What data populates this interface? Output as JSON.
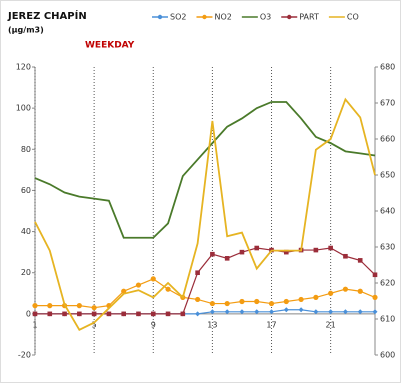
{
  "chart_data": {
    "type": "line",
    "title": "JEREZ CHAPÍN",
    "subtitle": "(µg/m3)",
    "annotation": "WEEKDAY",
    "x": [
      1,
      2,
      3,
      4,
      5,
      6,
      7,
      8,
      9,
      10,
      11,
      12,
      13,
      14,
      15,
      16,
      17,
      18,
      19,
      20,
      21,
      22,
      23,
      24
    ],
    "xlim": [
      1,
      24
    ],
    "xticks": [
      1,
      5,
      9,
      13,
      17,
      21
    ],
    "ylim": [
      -20,
      120
    ],
    "yticks": [
      -20,
      0,
      20,
      40,
      60,
      80,
      100,
      120
    ],
    "y2lim": [
      600,
      680
    ],
    "y2ticks": [
      600,
      610,
      620,
      630,
      640,
      650,
      660,
      670,
      680
    ],
    "grid": true,
    "series": [
      {
        "name": "SO2",
        "color": "#4a90d9",
        "marker": "diamond",
        "values": [
          0,
          0,
          0,
          0,
          0,
          0,
          0,
          0,
          0,
          0,
          0,
          0,
          1,
          1,
          1,
          1,
          1,
          2,
          2,
          1,
          1,
          1,
          1,
          1
        ]
      },
      {
        "name": "NO2",
        "color": "#f39c12",
        "marker": "circle",
        "values": [
          4,
          4,
          4,
          4,
          3,
          4,
          11,
          14,
          17,
          12,
          8,
          7,
          5,
          5,
          6,
          6,
          5,
          6,
          7,
          8,
          10,
          12,
          11,
          8
        ]
      },
      {
        "name": "O3",
        "color": "#4a7a2a",
        "marker": "none",
        "values": [
          66,
          63,
          59,
          57,
          56,
          55,
          37,
          37,
          37,
          44,
          67,
          75,
          83,
          91,
          95,
          100,
          103,
          103,
          95,
          86,
          83,
          79,
          78,
          77
        ]
      },
      {
        "name": "PART",
        "color": "#9b2d3a",
        "marker": "square",
        "values": [
          0,
          0,
          0,
          0,
          0,
          0,
          0,
          0,
          0,
          0,
          0,
          20,
          29,
          27,
          30,
          32,
          31,
          30,
          31,
          31,
          32,
          28,
          26,
          19
        ]
      },
      {
        "name": "CO",
        "color": "#e6b422",
        "marker": "none",
        "axis": "y2",
        "values": [
          637,
          629,
          614,
          607,
          609,
          613,
          617,
          618,
          616,
          620,
          616,
          631,
          665,
          633,
          634,
          624,
          629,
          629,
          629,
          657,
          660,
          671,
          666,
          650
        ]
      }
    ]
  }
}
